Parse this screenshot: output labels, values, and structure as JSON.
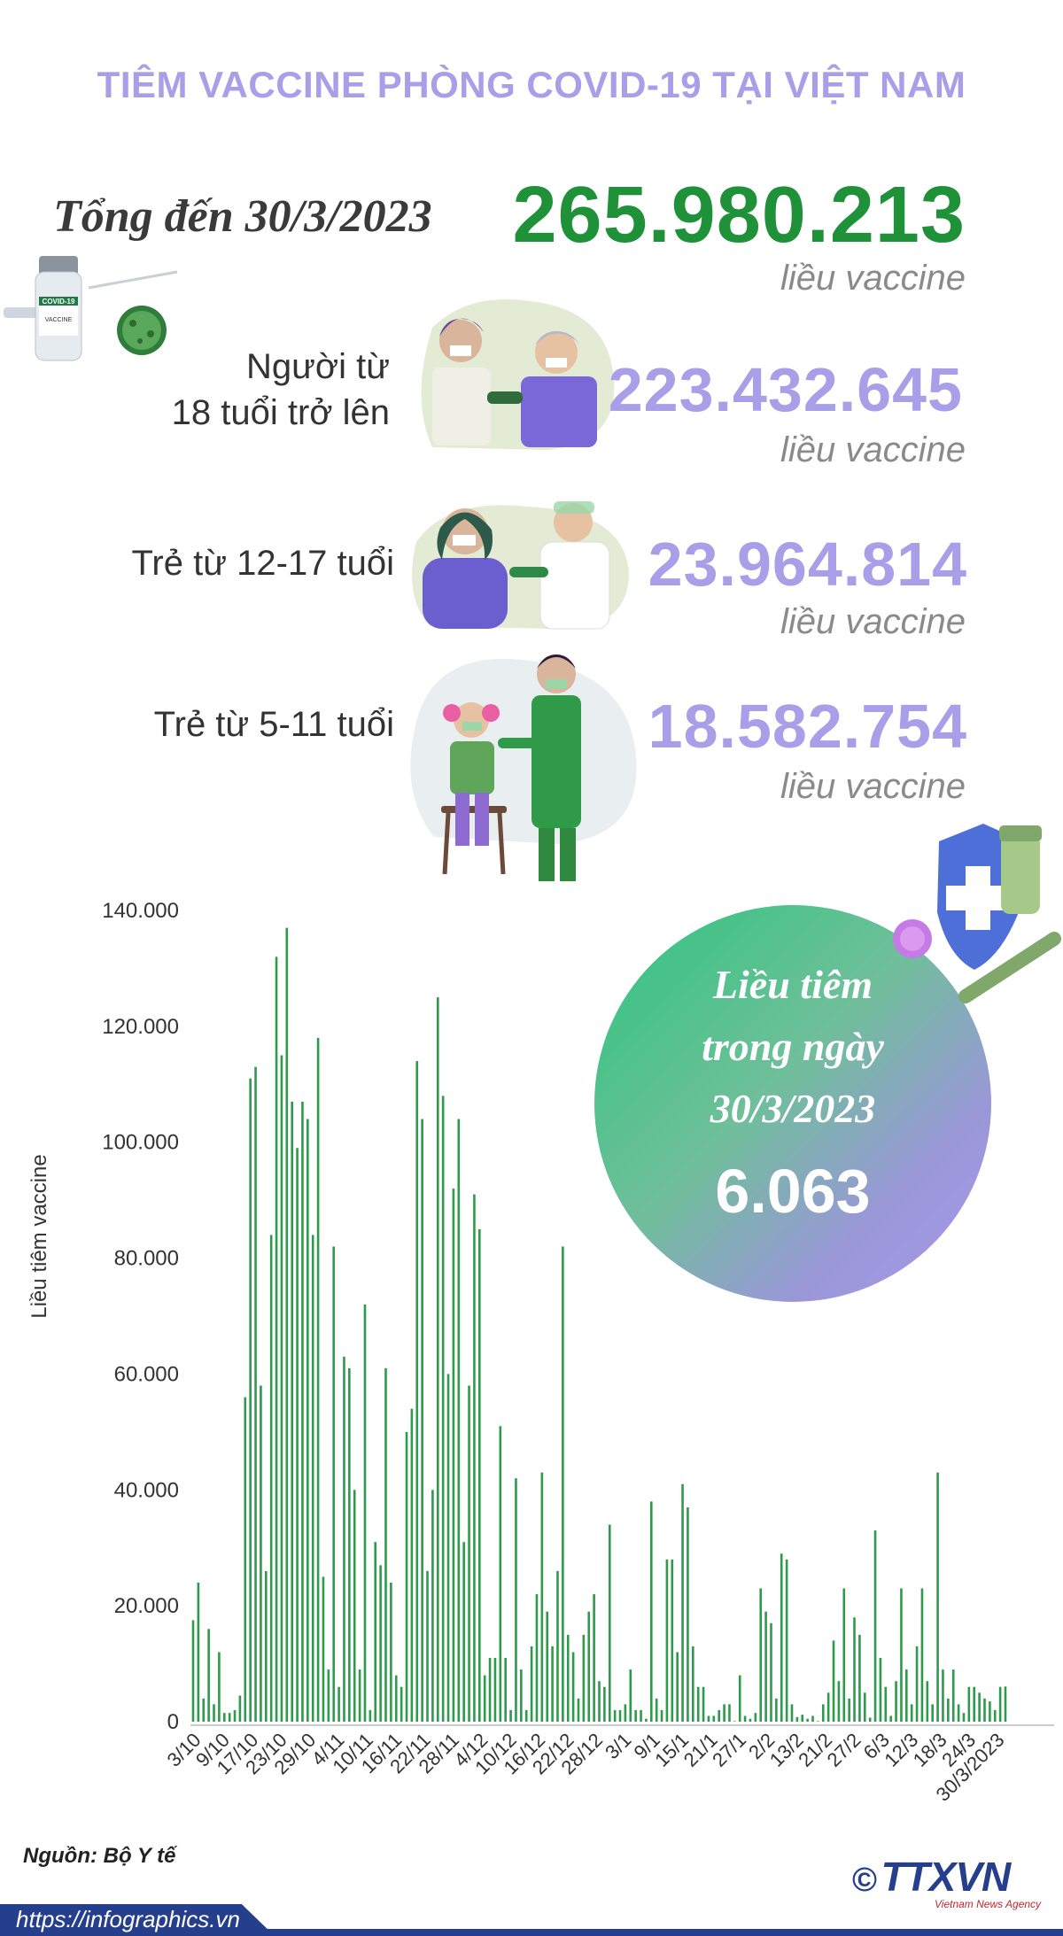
{
  "title": "TIÊM VACCINE PHÒNG COVID-19 TẠI VIỆT NAM",
  "total": {
    "label": "Tổng đến 30/3/2023",
    "value": "265.980.213",
    "unit": "liều vaccine"
  },
  "groups": [
    {
      "label_line1": "Người từ",
      "label_line2": "18 tuổi trở lên",
      "value": "223.432.645",
      "unit": "liều vaccine"
    },
    {
      "label_line1": "Trẻ từ 12-17 tuổi",
      "label_line2": "",
      "value": "23.964.814",
      "unit": "liều vaccine"
    },
    {
      "label_line1": "Trẻ từ 5-11 tuổi",
      "label_line2": "",
      "value": "18.582.754",
      "unit": "liều vaccine"
    }
  ],
  "daily_badge": {
    "line1": "Liều tiêm",
    "line2": "trong ngày",
    "line3": "30/3/2023",
    "value": "6.063"
  },
  "vial_label": {
    "line1": "COVID-19",
    "line2": "VACCINE"
  },
  "source": "Nguồn: Bộ Y tế",
  "url": "https://infographics.vn",
  "logo": {
    "mark": "©",
    "text": "TTXVN",
    "subtitle": "Vietnam News Agency"
  },
  "colors": {
    "title": "#a99ee8",
    "total": "#1f9138",
    "group_value": "#a99ee8",
    "bar": "#2e9a4b",
    "footer": "#263f8c"
  },
  "chart_data": {
    "type": "bar",
    "ylabel": "Liều tiêm vaccine",
    "ylim": [
      0,
      140000
    ],
    "yticks": [
      "0",
      "20.000",
      "40.000",
      "60.000",
      "80.000",
      "100.000",
      "120.000",
      "140.000"
    ],
    "tick_labels": [
      "3/10",
      "9/10",
      "17/10",
      "23/10",
      "29/10",
      "4/11",
      "10/11",
      "16/11",
      "22/11",
      "28/11",
      "4/12",
      "10/12",
      "16/12",
      "22/12",
      "28/12",
      "3/1",
      "9/1",
      "15/1",
      "21/1",
      "27/1",
      "2/2",
      "13/2",
      "21/2",
      "27/2",
      "6/3",
      "12/3",
      "18/3",
      "24/3",
      "30/3/2023"
    ],
    "values": [
      17500,
      24000,
      4000,
      16000,
      3000,
      12000,
      1500,
      1500,
      2000,
      4500,
      56000,
      111000,
      113000,
      58000,
      26000,
      84000,
      132000,
      115000,
      137000,
      107000,
      99000,
      107000,
      104000,
      84000,
      118000,
      25000,
      9000,
      82000,
      6000,
      63000,
      61000,
      40000,
      9000,
      72000,
      2000,
      31000,
      27000,
      61000,
      24000,
      8000,
      6000,
      50000,
      54000,
      114000,
      104000,
      26000,
      40000,
      125000,
      108000,
      60000,
      92000,
      104000,
      31000,
      58000,
      91000,
      85000,
      8000,
      11000,
      11000,
      51000,
      11000,
      2000,
      42000,
      9000,
      2000,
      13000,
      22000,
      43000,
      19000,
      13000,
      26000,
      82000,
      15000,
      12000,
      4000,
      15000,
      19000,
      22000,
      7000,
      6000,
      34000,
      2000,
      2000,
      3000,
      9000,
      2000,
      2000,
      500,
      38000,
      4000,
      2000,
      28000,
      28000,
      12000,
      41000,
      37000,
      13000,
      6000,
      6000,
      1000,
      1000,
      2000,
      3000,
      3000,
      100,
      8000,
      1000,
      500,
      1500,
      23000,
      19000,
      17000,
      4000,
      29000,
      28000,
      3000,
      800,
      1200,
      500,
      1000,
      100,
      3000,
      5000,
      14000,
      7000,
      23000,
      4000,
      18000,
      15000,
      5000,
      700,
      33000,
      11000,
      6000,
      1000,
      7000,
      23000,
      9000,
      3000,
      13000,
      23000,
      7000,
      3000,
      43000,
      9000,
      4000,
      9000,
      3000,
      1500,
      6000,
      6000,
      5000,
      4000,
      3500,
      2000,
      6000,
      6063
    ]
  }
}
